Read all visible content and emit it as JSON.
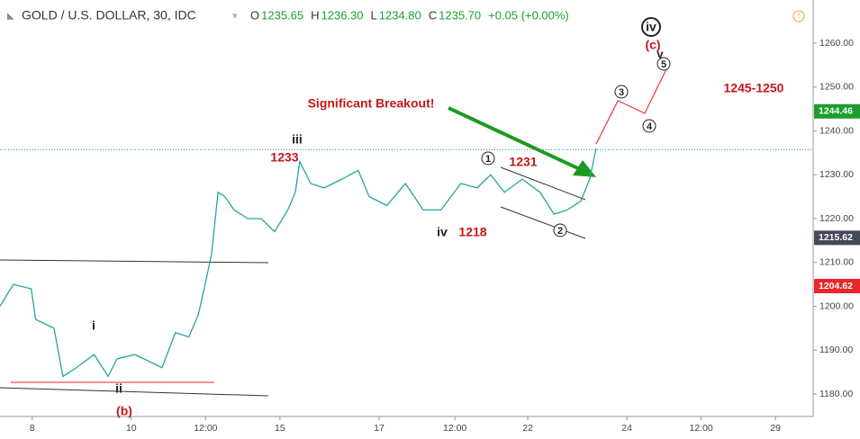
{
  "header": {
    "symbol": "GOLD / U.S. DOLLAR, 30, IDC",
    "ohlc": [
      [
        "O",
        "1235.65"
      ],
      [
        "H",
        "1236.30"
      ],
      [
        "L",
        "1234.80"
      ],
      [
        "C",
        "1235.70"
      ]
    ],
    "change": "+0.05 (+0.00%)"
  },
  "chart_data": {
    "type": "line",
    "x": [
      -0.65,
      -0.38,
      -0.02,
      0.07,
      0.44,
      0.62,
      0.89,
      1.25,
      1.53,
      1.71,
      2.07,
      2.44,
      2.62,
      2.89,
      3.16,
      3.35,
      3.49,
      3.62,
      3.75,
      3.89,
      4.07,
      4.35,
      4.62,
      4.89,
      5.16,
      5.31,
      5.4,
      5.62,
      5.89,
      6.25,
      6.58,
      6.8,
      7.16,
      7.53,
      7.89,
      8.25,
      8.65,
      8.98,
      9.25,
      9.53,
      9.89,
      10.25,
      10.53,
      10.8,
      11.07,
      11.25,
      11.38
    ],
    "series": [
      {
        "color": "#26a69a",
        "values": [
          1200,
          1205,
          1204,
          1197,
          1195,
          1184,
          1186,
          1189,
          1184,
          1188,
          1189,
          1187,
          1186,
          1194,
          1193,
          1198,
          1205,
          1212,
          1226,
          1225,
          1222,
          1220,
          1220,
          1217,
          1222,
          1226,
          1233,
          1228,
          1227,
          1229,
          1231,
          1225,
          1223,
          1228,
          1222,
          1222,
          1228,
          1227,
          1230,
          1226,
          1229,
          1226,
          1221,
          1222,
          1224,
          1229,
          1236
        ]
      }
    ],
    "projection": {
      "color": "#ff3030",
      "x": [
        11.38,
        11.82,
        12.36,
        12.8
      ],
      "values": [
        1237.0,
        1246.9,
        1244.0,
        1254.1
      ]
    },
    "last_price": 1235.7,
    "price_labels": [
      {
        "value": 1244.46,
        "label": "1244.46",
        "color": "#1b9e2e"
      },
      {
        "value": 1215.62,
        "label": "1215.62",
        "color": "#444a57"
      },
      {
        "value": 1204.62,
        "label": "1204.62",
        "color": "#e8262b"
      }
    ],
    "xlim": [
      -0.65,
      15.76
    ],
    "xticks": [
      {
        "value": 0,
        "label": "8"
      },
      {
        "value": 2,
        "label": "10"
      },
      {
        "value": 3.5,
        "label": "12:00"
      },
      {
        "value": 5,
        "label": "15"
      },
      {
        "value": 7,
        "label": "17"
      },
      {
        "value": 8.53,
        "label": "12:00"
      },
      {
        "value": 10,
        "label": "22"
      },
      {
        "value": 12,
        "label": "24"
      },
      {
        "value": 13.5,
        "label": "12:00"
      },
      {
        "value": 15,
        "label": "29"
      }
    ],
    "ylim": [
      1174.87,
      1269.85
    ],
    "yticks": [
      {
        "value": 1180,
        "label": "1180.00"
      },
      {
        "value": 1190,
        "label": "1190.00"
      },
      {
        "value": 1200,
        "label": "1200.00"
      },
      {
        "value": 1210,
        "label": "1210.00"
      },
      {
        "value": 1220,
        "label": "1220.00"
      },
      {
        "value": 1230,
        "label": "1230.00"
      },
      {
        "value": 1240,
        "label": "1240.00"
      },
      {
        "value": 1250,
        "label": "1250.00"
      },
      {
        "value": 1260,
        "label": "1260.00"
      }
    ],
    "annotations": [
      "iii",
      "1233",
      "iv",
      "1218",
      "i",
      "ii",
      "(b)",
      "1231",
      "Significant Breakout!",
      "1245-1250",
      "(c)",
      "v",
      "iv",
      "1",
      "2",
      "3",
      "4",
      "5"
    ]
  }
}
